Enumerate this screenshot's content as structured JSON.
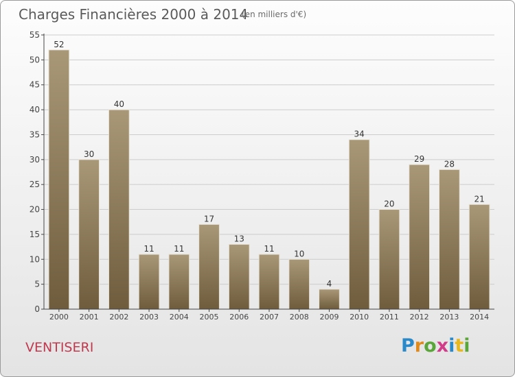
{
  "header": {
    "title": "Charges Financières 2000 à 2014",
    "subtitle": "(en milliers d'€)"
  },
  "commune": "VENTISERI",
  "logo": {
    "letters": [
      "P",
      "r",
      "o",
      "x",
      "i",
      "t",
      "i"
    ]
  },
  "colors": {
    "bar_top": "#a99878",
    "bar_bottom": "#6e5c3d",
    "axis": "#444444",
    "grid": "#cccccc",
    "commune_text": "#c0394f"
  },
  "chart_data": {
    "type": "bar",
    "categories": [
      "2000",
      "2001",
      "2002",
      "2003",
      "2004",
      "2005",
      "2006",
      "2007",
      "2008",
      "2009",
      "2010",
      "2011",
      "2012",
      "2013",
      "2014"
    ],
    "values": [
      52,
      30,
      40,
      11,
      11,
      17,
      13,
      11,
      10,
      4,
      34,
      20,
      29,
      28,
      21
    ],
    "title": "Charges Financières 2000 à 2014",
    "subtitle": "(en milliers d'€)",
    "xlabel": "",
    "ylabel": "",
    "ylim": [
      0,
      55
    ],
    "yticks": [
      0,
      5,
      10,
      15,
      20,
      25,
      30,
      35,
      40,
      45,
      50,
      55
    ],
    "grid": true
  }
}
